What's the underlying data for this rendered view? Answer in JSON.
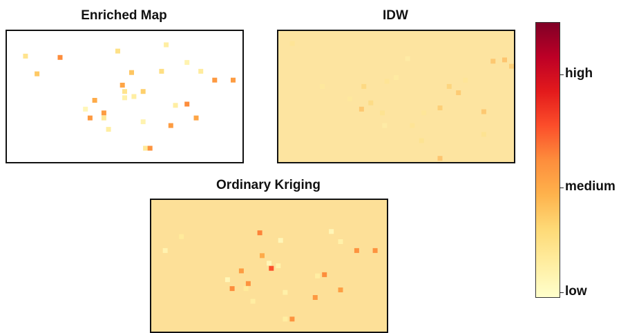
{
  "chart_data": [
    {
      "type": "heatmap",
      "title": "Enriched Map",
      "background_color": "#ffffff",
      "cells": [
        [
          0.07,
          0.18,
          0.18
        ],
        [
          0.12,
          0.32,
          0.3
        ],
        [
          0.47,
          0.14,
          0.2
        ],
        [
          0.58,
          0.46,
          0.28
        ],
        [
          0.68,
          0.09,
          0.12
        ],
        [
          0.66,
          0.3,
          0.21
        ],
        [
          0.53,
          0.31,
          0.31
        ],
        [
          0.49,
          0.41,
          0.42
        ],
        [
          0.5,
          0.46,
          0.18
        ],
        [
          0.5,
          0.51,
          0.1
        ],
        [
          0.54,
          0.5,
          0.12
        ],
        [
          0.37,
          0.53,
          0.4
        ],
        [
          0.33,
          0.6,
          0.06
        ],
        [
          0.41,
          0.63,
          0.45
        ],
        [
          0.35,
          0.67,
          0.46
        ],
        [
          0.41,
          0.67,
          0.15
        ],
        [
          0.43,
          0.76,
          0.12
        ],
        [
          0.58,
          0.7,
          0.08
        ],
        [
          0.72,
          0.57,
          0.12
        ],
        [
          0.77,
          0.56,
          0.5
        ],
        [
          0.7,
          0.73,
          0.45
        ],
        [
          0.81,
          0.67,
          0.42
        ],
        [
          0.77,
          0.23,
          0.08
        ],
        [
          0.83,
          0.3,
          0.13
        ],
        [
          0.89,
          0.37,
          0.46
        ],
        [
          0.97,
          0.37,
          0.45
        ],
        [
          0.59,
          0.91,
          0.15
        ],
        [
          0.61,
          0.91,
          0.48
        ],
        [
          0.22,
          0.19,
          0.5
        ]
      ]
    },
    {
      "type": "heatmap",
      "title": "IDW",
      "background_color": "#fde4a0",
      "cells": [
        [
          0.36,
          0.42,
          0.28
        ],
        [
          0.39,
          0.55,
          0.26
        ],
        [
          0.44,
          0.63,
          0.2
        ],
        [
          0.35,
          0.6,
          0.38
        ],
        [
          0.3,
          0.52,
          0.14
        ],
        [
          0.46,
          0.38,
          0.18
        ],
        [
          0.73,
          0.42,
          0.3
        ],
        [
          0.77,
          0.47,
          0.36
        ],
        [
          0.69,
          0.59,
          0.34
        ],
        [
          0.62,
          0.63,
          0.16
        ],
        [
          0.88,
          0.62,
          0.38
        ],
        [
          0.8,
          0.37,
          0.17
        ],
        [
          0.92,
          0.22,
          0.38
        ],
        [
          0.97,
          0.21,
          0.4
        ],
        [
          1.0,
          0.26,
          0.34
        ],
        [
          0.57,
          0.73,
          0.18
        ],
        [
          0.45,
          0.73,
          0.1
        ],
        [
          0.61,
          0.85,
          0.2
        ],
        [
          0.69,
          0.99,
          0.4
        ],
        [
          0.05,
          0.08,
          0.18
        ],
        [
          0.5,
          0.35,
          0.12
        ],
        [
          0.18,
          0.42,
          0.14
        ],
        [
          0.55,
          0.2,
          0.1
        ],
        [
          0.88,
          0.8,
          0.2
        ]
      ]
    },
    {
      "type": "heatmap",
      "title": "Ordinary Kriging",
      "background_color": "#fde098",
      "cells": [
        [
          0.46,
          0.24,
          0.52
        ],
        [
          0.55,
          0.3,
          0.06
        ],
        [
          0.47,
          0.42,
          0.4
        ],
        [
          0.5,
          0.48,
          0.06
        ],
        [
          0.51,
          0.52,
          0.62
        ],
        [
          0.54,
          0.5,
          0.1
        ],
        [
          0.38,
          0.54,
          0.45
        ],
        [
          0.32,
          0.61,
          0.06
        ],
        [
          0.41,
          0.64,
          0.48
        ],
        [
          0.34,
          0.68,
          0.5
        ],
        [
          0.4,
          0.68,
          0.14
        ],
        [
          0.43,
          0.78,
          0.12
        ],
        [
          0.57,
          0.71,
          0.1
        ],
        [
          0.71,
          0.58,
          0.12
        ],
        [
          0.74,
          0.57,
          0.5
        ],
        [
          0.7,
          0.75,
          0.46
        ],
        [
          0.81,
          0.69,
          0.44
        ],
        [
          0.77,
          0.23,
          0.06
        ],
        [
          0.81,
          0.31,
          0.1
        ],
        [
          0.88,
          0.38,
          0.48
        ],
        [
          0.96,
          0.38,
          0.48
        ],
        [
          0.57,
          0.92,
          0.12
        ],
        [
          0.6,
          0.92,
          0.48
        ],
        [
          0.05,
          0.38,
          0.08
        ],
        [
          0.12,
          0.27,
          0.14
        ]
      ]
    }
  ],
  "colorbar": {
    "colors": [
      "#ffffcc",
      "#ffeda0",
      "#fed976",
      "#feb24c",
      "#fd8d3c",
      "#fc4e2a",
      "#e31a1c",
      "#bd0026",
      "#800026"
    ],
    "ticks": [
      {
        "label": "high",
        "value": 0.81
      },
      {
        "label": "medium",
        "value": 0.4
      },
      {
        "label": "low",
        "value": 0.02
      }
    ]
  }
}
